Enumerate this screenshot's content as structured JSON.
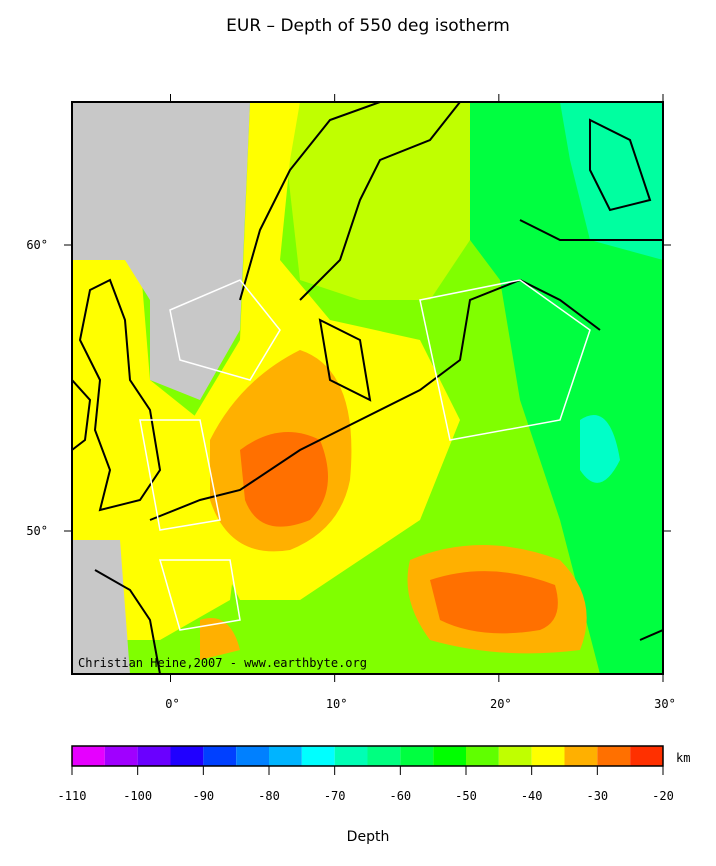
{
  "title": "EUR – Depth of 550 deg isotherm",
  "map": {
    "xlim": [
      -6,
      30
    ],
    "ylim": [
      45,
      65
    ],
    "xticks": [
      {
        "value": 0,
        "label": "0°"
      },
      {
        "value": 10,
        "label": "10°"
      },
      {
        "value": 20,
        "label": "20°"
      },
      {
        "value": 30,
        "label": "30°"
      }
    ],
    "yticks": [
      {
        "value": 50,
        "label": "50°"
      },
      {
        "value": 60,
        "label": "60°"
      }
    ],
    "credit": "Christian Heine,2007 - www.earthbyte.org"
  },
  "colorbar": {
    "levels": [
      -110,
      -105,
      -100,
      -95,
      -90,
      -85,
      -80,
      -75,
      -70,
      -65,
      -60,
      -55,
      -50,
      -45,
      -40,
      -35,
      -30,
      -25,
      -20
    ],
    "colors": [
      "#e600ff",
      "#a000ff",
      "#6a00ff",
      "#2000ff",
      "#0040ff",
      "#0080ff",
      "#00b4ff",
      "#00ffff",
      "#00ffb4",
      "#00ff80",
      "#00ff40",
      "#00ff00",
      "#60ff00",
      "#c0ff00",
      "#ffff00",
      "#ffb000",
      "#ff7000",
      "#ff3000"
    ],
    "ticks": [
      -110,
      -100,
      -90,
      -80,
      -70,
      -60,
      -50,
      -40,
      -30,
      -20
    ],
    "unit": "km",
    "label": "Depth"
  }
}
